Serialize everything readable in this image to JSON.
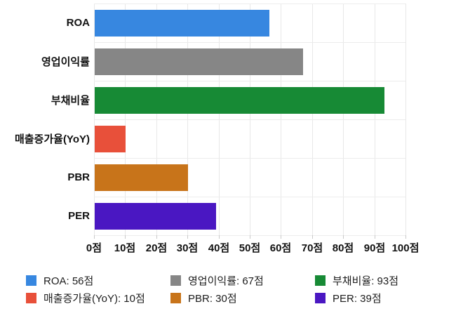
{
  "chart_data": {
    "type": "bar",
    "orientation": "horizontal",
    "title": "",
    "xlabel": "",
    "ylabel": "",
    "unit": "점",
    "categories": [
      "ROA",
      "영업이익률",
      "부채비율",
      "매출증가율(YoY)",
      "PBR",
      "PER"
    ],
    "values": [
      56,
      67,
      93,
      10,
      30,
      39
    ],
    "bar_colors": [
      "#3787e0",
      "#868686",
      "#178a35",
      "#e8503a",
      "#c8741a",
      "#4a17c2"
    ],
    "xlim": [
      0,
      100
    ],
    "x_tick_step": 10,
    "x_tick_labels": [
      "0점",
      "10점",
      "20점",
      "30점",
      "40점",
      "50점",
      "60점",
      "70점",
      "80점",
      "90점",
      "100점"
    ],
    "grid": true,
    "legend_position": "bottom",
    "legend": [
      {
        "label": "ROA: 56점",
        "color": "#3787e0"
      },
      {
        "label": "영업이익률: 67점",
        "color": "#868686"
      },
      {
        "label": "부채비율: 93점",
        "color": "#178a35"
      },
      {
        "label": "매출증가율(YoY): 10점",
        "color": "#e8503a"
      },
      {
        "label": "PBR: 30점",
        "color": "#c8741a"
      },
      {
        "label": "PER: 39점",
        "color": "#4a17c2"
      }
    ],
    "colors": {
      "background": "#ffffff",
      "gridline": "#e8e8e8",
      "axis": "#c9c9c9",
      "label_text": "#111111",
      "legend_text": "#1c1c1c"
    }
  }
}
